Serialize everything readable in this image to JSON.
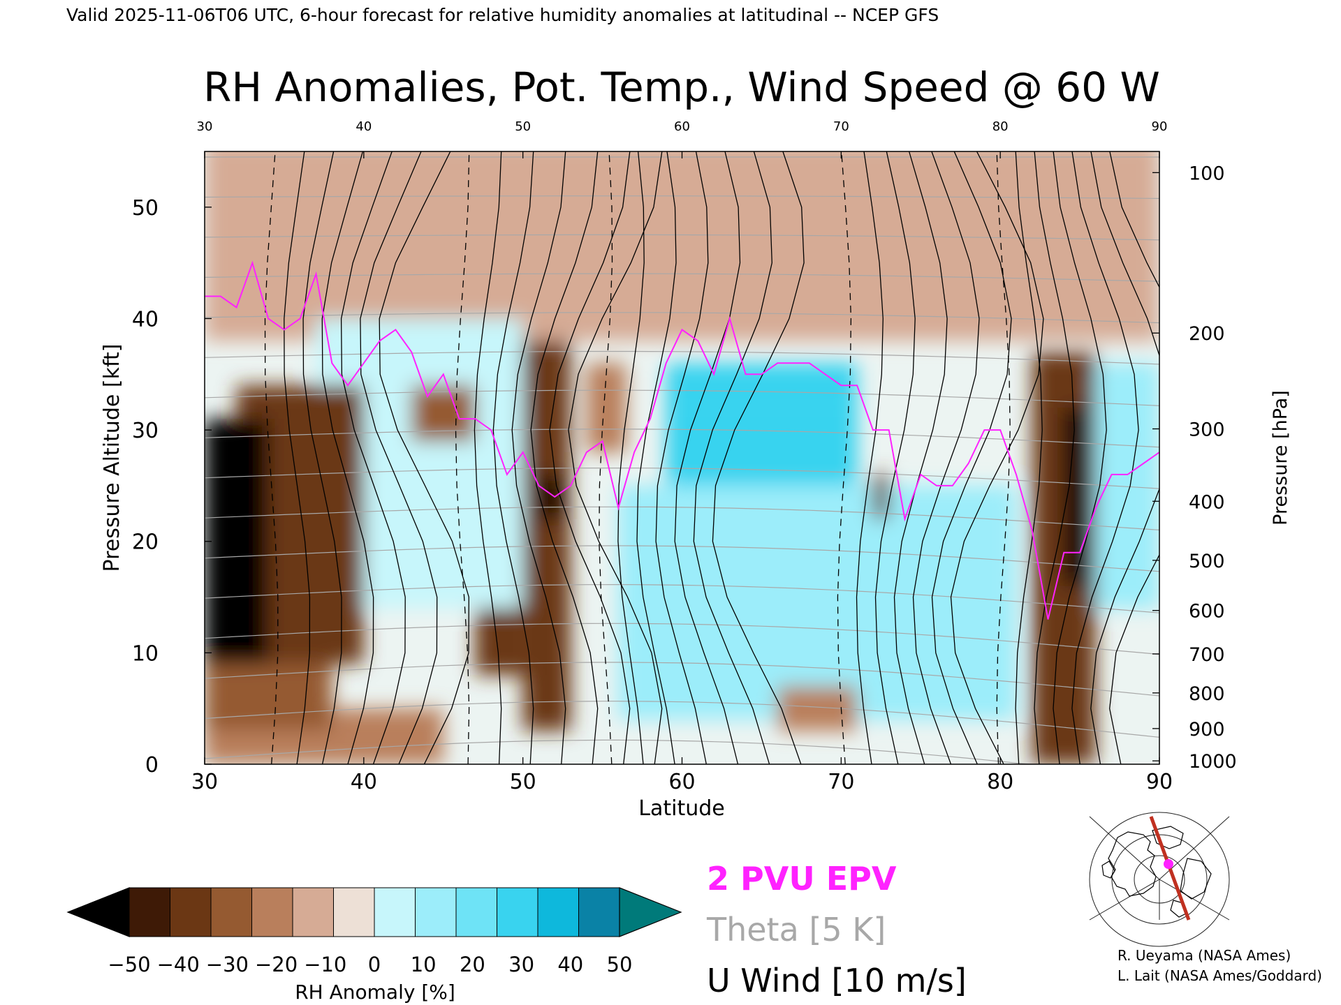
{
  "header": {
    "valid_line": "Valid 2025-11-06T06 UTC, 6-hour forecast for relative humidity anomalies at latitudinal -- NCEP GFS"
  },
  "chart_data": {
    "type": "heatmap",
    "title": "RH Anomalies, Pot. Temp., Wind Speed @ 60 W",
    "xlabel": "Latitude",
    "ylabel": "Pressure Altitude [kft]",
    "y2label": "Pressure [hPa]",
    "xlim": [
      30,
      90
    ],
    "ylim": [
      0,
      55
    ],
    "x_ticks": [
      "30",
      "40",
      "50",
      "60",
      "70",
      "80",
      "90"
    ],
    "x_ticks_top": [
      "30",
      "40",
      "50",
      "60",
      "70",
      "80",
      "90"
    ],
    "y_ticks": [
      "0",
      "10",
      "20",
      "30",
      "40",
      "50"
    ],
    "pressure_ticks": [
      {
        "label": "100",
        "kft": 53.1
      },
      {
        "label": "200",
        "kft": 38.7
      },
      {
        "label": "300",
        "kft": 30.1
      },
      {
        "label": "400",
        "kft": 23.6
      },
      {
        "label": "500",
        "kft": 18.3
      },
      {
        "label": "600",
        "kft": 13.8
      },
      {
        "label": "700",
        "kft": 9.9
      },
      {
        "label": "800",
        "kft": 6.4
      },
      {
        "label": "900",
        "kft": 3.2
      },
      {
        "label": "1000",
        "kft": 0.3
      }
    ],
    "grid": false,
    "rh_anomaly_regions": [
      {
        "lat": [
          30,
          34
        ],
        "kft": [
          8,
          31
        ],
        "value": -55
      },
      {
        "lat": [
          32,
          40
        ],
        "kft": [
          9,
          34
        ],
        "value": -35
      },
      {
        "lat": [
          30,
          38
        ],
        "kft": [
          3,
          9
        ],
        "value": -25
      },
      {
        "lat": [
          30,
          39
        ],
        "kft": [
          0,
          3
        ],
        "value": -18
      },
      {
        "lat": [
          38,
          45
        ],
        "kft": [
          0,
          5
        ],
        "value": -15
      },
      {
        "lat": [
          43,
          47
        ],
        "kft": [
          29,
          34
        ],
        "value": -30
      },
      {
        "lat": [
          47,
          50
        ],
        "kft": [
          8,
          14
        ],
        "value": -38
      },
      {
        "lat": [
          50,
          53
        ],
        "kft": [
          3,
          38
        ],
        "value": -40
      },
      {
        "lat": [
          51,
          52.5
        ],
        "kft": [
          22,
          26
        ],
        "value": -55
      },
      {
        "lat": [
          54,
          56.5
        ],
        "kft": [
          28,
          36
        ],
        "value": -20
      },
      {
        "lat": [
          59,
          71
        ],
        "kft": [
          32,
          36
        ],
        "value": 48
      },
      {
        "lat": [
          59,
          71
        ],
        "kft": [
          25,
          32
        ],
        "value": 40
      },
      {
        "lat": [
          56,
          81
        ],
        "kft": [
          4,
          25
        ],
        "value": 22
      },
      {
        "lat": [
          37,
          50
        ],
        "kft": [
          14,
          40
        ],
        "value": 18
      },
      {
        "lat": [
          72,
          73
        ],
        "kft": [
          22,
          26
        ],
        "value": -40
      },
      {
        "lat": [
          66,
          71
        ],
        "kft": [
          3,
          7
        ],
        "value": -12
      },
      {
        "lat": [
          82,
          86
        ],
        "kft": [
          0,
          37
        ],
        "value": -40
      },
      {
        "lat": [
          84,
          85.5
        ],
        "kft": [
          16,
          32
        ],
        "value": -50
      },
      {
        "lat": [
          86,
          90
        ],
        "kft": [
          14,
          36
        ],
        "value": 25
      },
      {
        "lat": [
          30,
          90
        ],
        "kft": [
          38,
          56
        ],
        "value": -8
      }
    ],
    "epv_2pvu_line": {
      "lat": [
        30,
        31,
        32,
        33,
        34,
        35,
        36,
        37,
        38,
        39,
        40,
        41,
        42,
        43,
        44,
        45,
        46,
        47,
        48,
        49,
        50,
        51,
        52,
        53,
        54,
        55,
        56,
        57,
        58,
        59,
        60,
        61,
        62,
        63,
        64,
        65,
        66,
        67,
        68,
        69,
        70,
        71,
        72,
        73,
        74,
        75,
        76,
        77,
        78,
        79,
        80,
        81,
        82,
        83,
        84,
        85,
        86,
        87,
        88,
        89,
        90
      ],
      "kft": [
        42,
        42,
        41,
        45,
        40,
        39,
        40,
        44,
        36,
        34,
        36,
        38,
        39,
        37,
        33,
        35,
        31,
        31,
        30,
        26,
        28,
        25,
        24,
        25,
        28,
        29,
        23,
        28,
        31,
        36,
        39,
        38,
        35,
        40,
        35,
        35,
        36,
        36,
        36,
        35,
        34,
        34,
        30,
        30,
        22,
        26,
        25,
        25,
        27,
        30,
        30,
        26,
        21,
        13,
        19,
        19,
        23,
        26,
        26,
        27,
        28
      ]
    },
    "theta_contours_K": [
      270,
      280,
      290,
      300,
      310,
      320,
      330,
      340,
      350,
      360,
      370,
      380,
      390,
      400,
      410,
      420
    ],
    "u_wind_contours_ms": [
      -10,
      0,
      10,
      20,
      30,
      40,
      50
    ],
    "legend": {
      "epv_label": "2 PVU EPV",
      "theta_label": "Theta [5 K]",
      "uwind_label": "U Wind [10 m/s]",
      "epv_color": "#ff22ff",
      "theta_color": "#a8a8a8",
      "uwind_color": "#000000"
    },
    "colorbar": {
      "label": "RH Anomaly [%]",
      "ticks": [
        "−50",
        "−40",
        "−30",
        "−20",
        "−10",
        "0",
        "10",
        "20",
        "30",
        "40",
        "50"
      ],
      "colors": [
        "#000000",
        "#3e1a06",
        "#6b3714",
        "#955a31",
        "#b97f5c",
        "#d6ab95",
        "#ede0d6",
        "#c7f6fb",
        "#9cedfa",
        "#6ee3f6",
        "#39d3ef",
        "#0eb8dc",
        "#0a82a6",
        "#007a7a"
      ]
    }
  },
  "inset_map": {
    "marker_color": "#ff22ff",
    "section_color": "#c03020"
  },
  "credits": {
    "line1": "R. Ueyama (NASA Ames)",
    "line2": "L. Lait (NASA Ames/Goddard)"
  }
}
